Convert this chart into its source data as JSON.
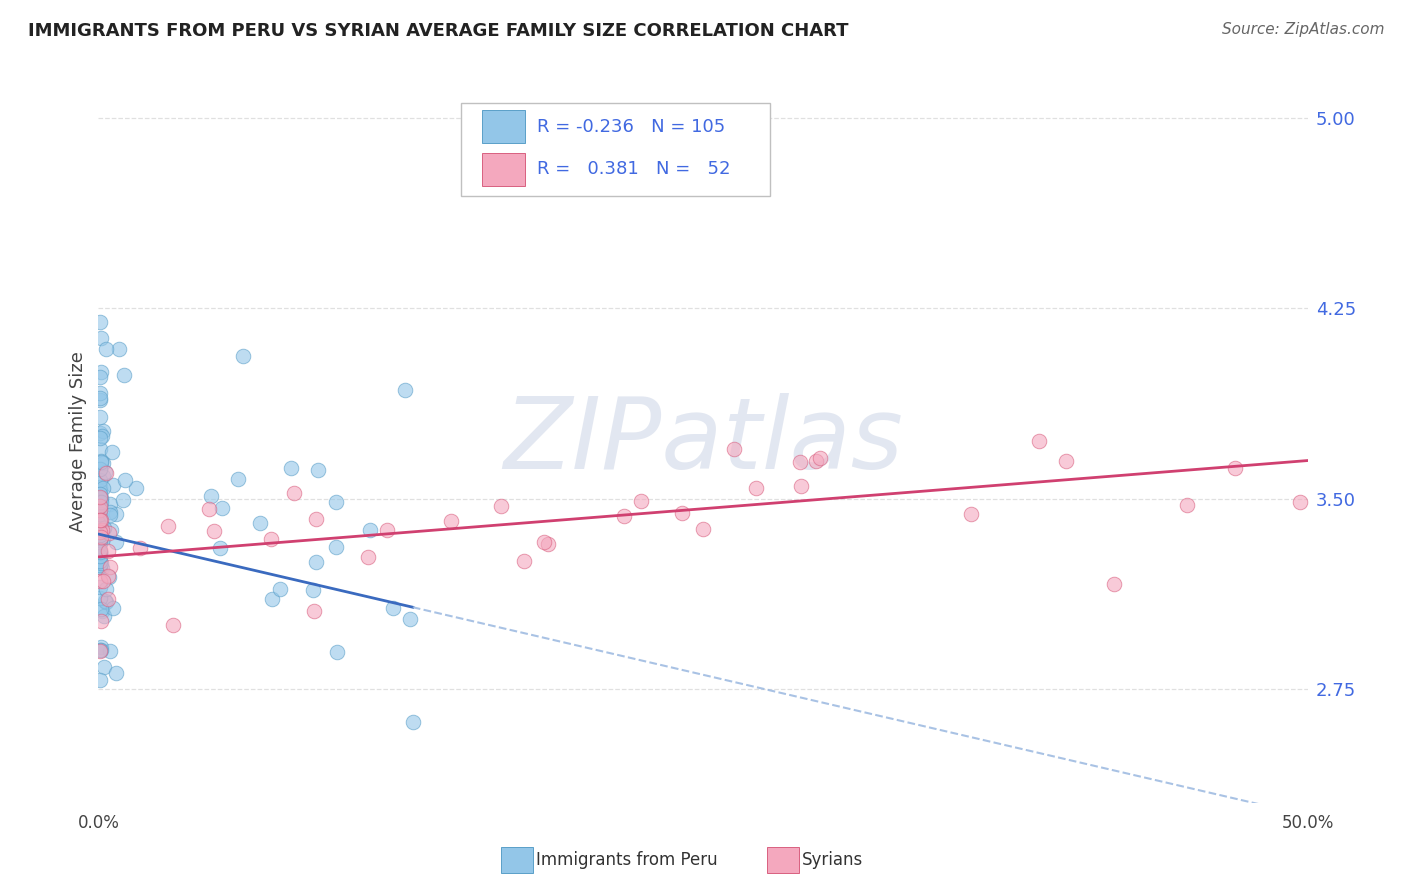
{
  "title": "IMMIGRANTS FROM PERU VS SYRIAN AVERAGE FAMILY SIZE CORRELATION CHART",
  "source": "Source: ZipAtlas.com",
  "ylabel": "Average Family Size",
  "right_yticks": [
    5.0,
    4.25,
    3.5,
    2.75
  ],
  "xlim": [
    0.0,
    50.0
  ],
  "ylim": [
    2.3,
    5.15
  ],
  "blue_color": "#93c6e8",
  "pink_color": "#f4a8be",
  "blue_edge": "#5a9fc8",
  "pink_edge": "#d96080",
  "trend_blue_color": "#3a6abf",
  "trend_pink_color": "#d04070",
  "trend_blue_dash_color": "#9ab8e0",
  "legend_R_blue": "-0.236",
  "legend_N_blue": "105",
  "legend_R_pink": "0.381",
  "legend_N_pink": "52",
  "blue_label": "Immigrants from Peru",
  "pink_label": "Syrians",
  "title_color": "#222222",
  "source_color": "#666666",
  "axis_label_color": "#4169e1",
  "background_color": "#ffffff",
  "grid_color": "#dddddd",
  "watermark": "ZIPatlas",
  "watermark_color": "#d0d8e8",
  "blue_trend_x0": 0.0,
  "blue_trend_y0": 3.36,
  "blue_trend_x1": 50.0,
  "blue_trend_y1": 2.25,
  "blue_solid_end": 13.0,
  "pink_trend_x0": 0.0,
  "pink_trend_y0": 3.27,
  "pink_trend_x1": 50.0,
  "pink_trend_y1": 3.65
}
